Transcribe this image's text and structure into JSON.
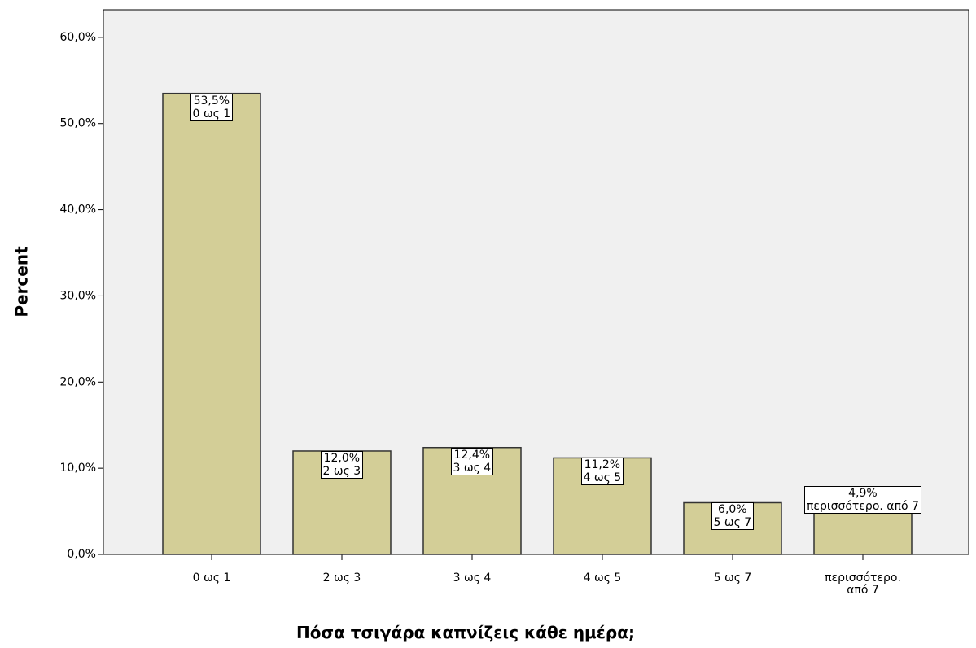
{
  "chart_data": {
    "type": "bar",
    "x_label": "Πόσα τσιγάρα καπνίζεις κάθε ημέρα;",
    "y_label": "Percent",
    "categories": [
      "0 ως 1",
      "2 ως 3",
      "3 ως 4",
      "4 ως 5",
      "5 ως 7",
      "περισσότερο. από 7"
    ],
    "values": [
      53.5,
      12.0,
      12.4,
      11.2,
      6.0,
      4.9
    ],
    "value_labels": [
      "53,5%",
      "12,0%",
      "12,4%",
      "11,2%",
      "6,0%",
      "4,9%"
    ],
    "color": "#d3ce97",
    "ylim": [
      0,
      63.2
    ],
    "yticks": [
      {
        "value": 0,
        "label": "0,0%"
      },
      {
        "value": 10,
        "label": "10,0%"
      },
      {
        "value": 20,
        "label": "20,0%"
      },
      {
        "value": 30,
        "label": "30,0%"
      },
      {
        "value": 40,
        "label": "40,0%"
      },
      {
        "value": 50,
        "label": "50,0%"
      },
      {
        "value": 60,
        "label": "60,0%"
      }
    ]
  }
}
